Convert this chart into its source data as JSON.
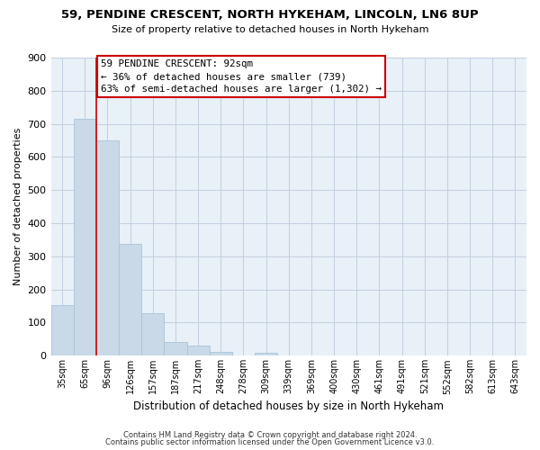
{
  "title": "59, PENDINE CRESCENT, NORTH HYKEHAM, LINCOLN, LN6 8UP",
  "subtitle": "Size of property relative to detached houses in North Hykeham",
  "xlabel": "Distribution of detached houses by size in North Hykeham",
  "ylabel": "Number of detached properties",
  "bar_labels": [
    "35sqm",
    "65sqm",
    "96sqm",
    "126sqm",
    "157sqm",
    "187sqm",
    "217sqm",
    "248sqm",
    "278sqm",
    "309sqm",
    "339sqm",
    "369sqm",
    "400sqm",
    "430sqm",
    "461sqm",
    "491sqm",
    "521sqm",
    "552sqm",
    "582sqm",
    "613sqm",
    "643sqm"
  ],
  "bar_heights": [
    152,
    716,
    651,
    338,
    128,
    42,
    30,
    12,
    0,
    8,
    0,
    0,
    0,
    0,
    0,
    0,
    0,
    0,
    0,
    0,
    0
  ],
  "bar_color": "#c9d9e8",
  "bar_edge_color": "#a8c4d8",
  "ylim": [
    0,
    900
  ],
  "yticks": [
    0,
    100,
    200,
    300,
    400,
    500,
    600,
    700,
    800,
    900
  ],
  "property_line_color": "#cc0000",
  "annotation_title": "59 PENDINE CRESCENT: 92sqm",
  "annotation_line1": "← 36% of detached houses are smaller (739)",
  "annotation_line2": "63% of semi-detached houses are larger (1,302) →",
  "annotation_box_color": "#cc0000",
  "footnote1": "Contains HM Land Registry data © Crown copyright and database right 2024.",
  "footnote2": "Contains public sector information licensed under the Open Government Licence v3.0.",
  "background_color": "#ffffff",
  "plot_bg_color": "#e8f0f8",
  "grid_color": "#c0d0e0"
}
